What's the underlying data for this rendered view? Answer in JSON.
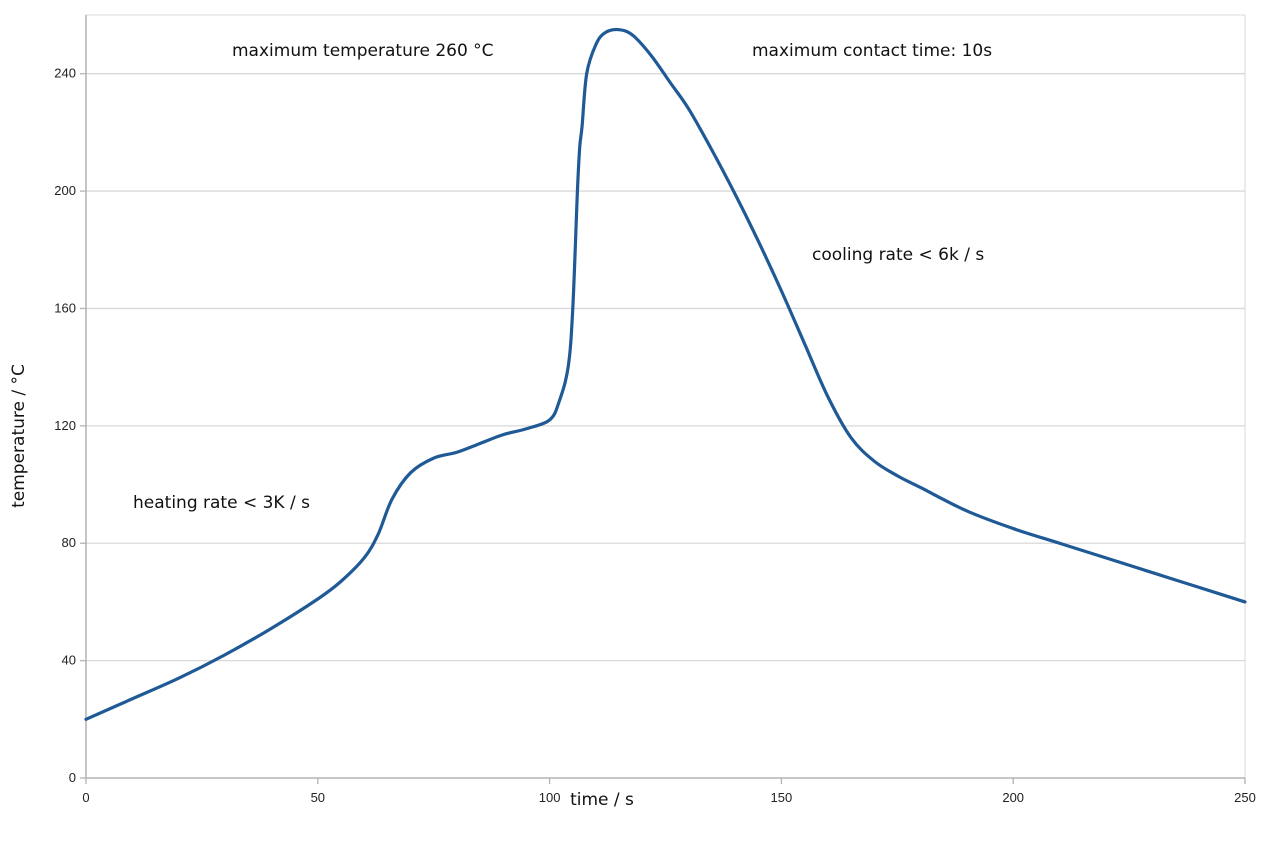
{
  "chart_data": {
    "type": "line",
    "title": "",
    "xlabel": "time / s",
    "ylabel": "temperature / °C",
    "xlim": [
      0,
      250
    ],
    "ylim": [
      0,
      260
    ],
    "x_ticks": [
      0,
      50,
      100,
      150,
      200,
      250
    ],
    "y_ticks": [
      0,
      40,
      80,
      120,
      160,
      200,
      240
    ],
    "grid": "horizontal",
    "colors": {
      "line": "#1f5a96",
      "grid": "#d9d9d9",
      "axis": "#b3b3b3"
    },
    "series": [
      {
        "x": [
          0,
          10,
          20,
          30,
          40,
          50,
          55,
          60,
          63,
          66,
          70,
          75,
          80,
          85,
          90,
          95,
          100,
          102,
          104,
          105,
          106,
          106.5,
          107,
          108,
          110,
          112,
          115,
          118,
          122,
          126,
          130,
          135,
          140,
          145,
          150,
          155,
          160,
          165,
          170,
          175,
          180,
          190,
          200,
          210,
          220,
          230,
          240,
          250
        ],
        "y": [
          20,
          27,
          34,
          42,
          51,
          61,
          67,
          75,
          83,
          95,
          104,
          109,
          111,
          114,
          117,
          119,
          122,
          128,
          140,
          160,
          200,
          215,
          222,
          240,
          250,
          254,
          255,
          253,
          246,
          237,
          228,
          214,
          199,
          183,
          166,
          148,
          130,
          116,
          108,
          103,
          99,
          91,
          85,
          80,
          75,
          70,
          65,
          60
        ]
      }
    ],
    "annotations": [
      {
        "text": "maximum temperature 260 °C",
        "x": 50,
        "y": 247
      },
      {
        "text": "maximum contact time: 10s",
        "x": 156,
        "y": 247
      },
      {
        "text": "cooling rate < 6k / s",
        "x": 170,
        "y": 175
      },
      {
        "text": "heating rate < 3K / s",
        "x": 30,
        "y": 92
      }
    ]
  }
}
